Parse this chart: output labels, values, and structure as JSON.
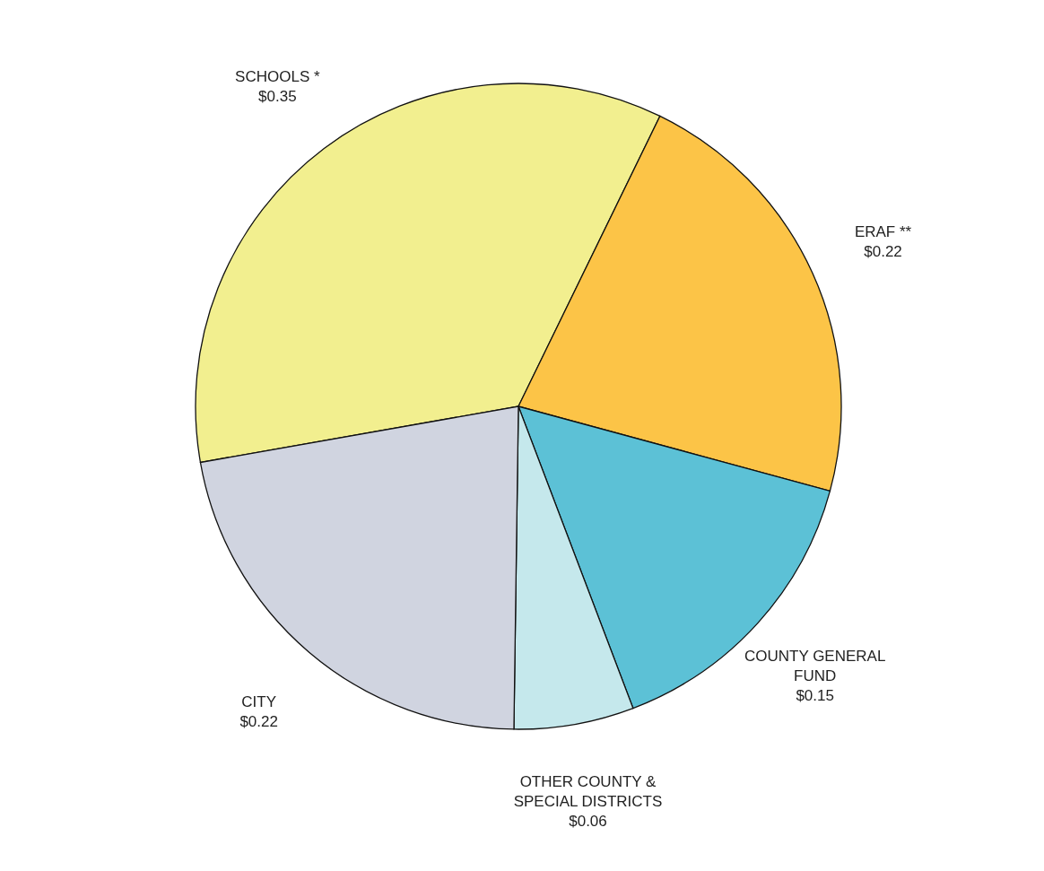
{
  "chart_data": {
    "type": "pie",
    "categories": [
      "SCHOOLS *",
      "ERAF **",
      "COUNTY GENERAL FUND",
      "OTHER COUNTY & SPECIAL DISTRICTS",
      "CITY"
    ],
    "values": [
      0.35,
      0.22,
      0.15,
      0.06,
      0.22
    ],
    "value_labels": [
      "$0.35",
      "$0.22",
      "$0.15",
      "$0.06",
      "$0.22"
    ],
    "colors": [
      "#f2ef8f",
      "#fcc447",
      "#5cc1d6",
      "#c5e8ec",
      "#d0d4e0"
    ],
    "legend": false
  }
}
